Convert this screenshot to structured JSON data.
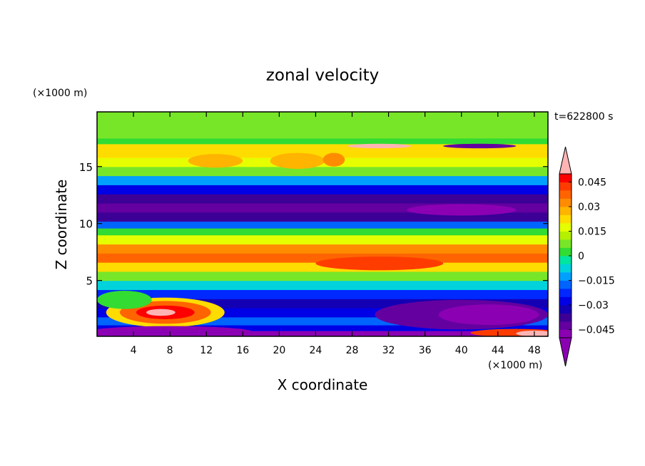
{
  "chart_data": {
    "type": "heatmap",
    "subtype": "filled-contour",
    "title": "zonal velocity",
    "time_label": "t=622800 s",
    "xlabel": "X coordinate",
    "ylabel": "Z coordinate",
    "x_unit": "(×1000 m)",
    "y_unit": "(×1000 m)",
    "xlim": [
      0,
      49.5
    ],
    "ylim": [
      0.1,
      19.8
    ],
    "x_ticks": [
      4,
      8,
      12,
      16,
      20,
      24,
      28,
      32,
      36,
      40,
      44,
      48
    ],
    "x_tick_labels": [
      "4",
      "8",
      "12",
      "16",
      "20",
      "24",
      "28",
      "32",
      "36",
      "40",
      "44",
      "48"
    ],
    "y_ticks": [
      5,
      10,
      15
    ],
    "y_tick_labels": [
      "5",
      "10",
      "15"
    ],
    "colorbar": {
      "levels": [
        -0.05,
        -0.045,
        -0.04,
        -0.035,
        -0.03,
        -0.025,
        -0.02,
        -0.015,
        -0.01,
        -0.005,
        0,
        0.005,
        0.01,
        0.015,
        0.02,
        0.025,
        0.03,
        0.035,
        0.04,
        0.045,
        0.05
      ],
      "tick_values": [
        0.045,
        0.03,
        0.015,
        0,
        -0.015,
        -0.03,
        -0.045
      ],
      "tick_labels": [
        "0.045",
        "0.03",
        "0.015",
        "0",
        "−0.015",
        "−0.03",
        "−0.045"
      ],
      "colors": [
        "#8c00b4",
        "#6400a0",
        "#3c0096",
        "#1400b4",
        "#0000e6",
        "#0028ff",
        "#0064ff",
        "#00a0ff",
        "#00d2dc",
        "#00e6a0",
        "#32dc32",
        "#78e628",
        "#b4f000",
        "#e6ff00",
        "#ffdc00",
        "#ffb400",
        "#ff8c00",
        "#ff6400",
        "#ff3c00",
        "#ff0000"
      ],
      "over_color": "#ffb4b4",
      "under_color": "#8c00b4"
    },
    "bands": [
      {
        "z": 0.1,
        "u": -0.05
      },
      {
        "z": 0.6,
        "u": -0.03
      },
      {
        "z": 1.1,
        "u": -0.02
      },
      {
        "z": 1.8,
        "u": -0.03
      },
      {
        "z": 2.6,
        "u": -0.035
      },
      {
        "z": 3.4,
        "u": -0.025
      },
      {
        "z": 4.2,
        "u": -0.01
      },
      {
        "z": 5.0,
        "u": 0.005
      },
      {
        "z": 5.8,
        "u": 0.02
      },
      {
        "z": 6.6,
        "u": 0.035
      },
      {
        "z": 7.4,
        "u": 0.03
      },
      {
        "z": 8.2,
        "u": 0.015
      },
      {
        "z": 9.0,
        "u": 0.0
      },
      {
        "z": 9.6,
        "u": -0.02
      },
      {
        "z": 10.2,
        "u": -0.04
      },
      {
        "z": 11.0,
        "u": -0.045
      },
      {
        "z": 11.8,
        "u": -0.04
      },
      {
        "z": 12.6,
        "u": -0.03
      },
      {
        "z": 13.4,
        "u": -0.015
      },
      {
        "z": 14.2,
        "u": 0.005
      },
      {
        "z": 15.0,
        "u": 0.015
      },
      {
        "z": 15.8,
        "u": 0.02
      },
      {
        "z": 16.5,
        "u": 0.02
      },
      {
        "z": 17.0,
        "u": 0.0
      },
      {
        "z": 17.5,
        "u": 0.005
      },
      {
        "z": 19.8,
        "u": 0.005
      }
    ],
    "features": [
      {
        "shape": "ellipse",
        "x": 7.5,
        "z": 2.2,
        "rx": 6.5,
        "rz": 1.3,
        "u": 0.02
      },
      {
        "shape": "ellipse",
        "x": 7.5,
        "z": 2.2,
        "rx": 5.0,
        "rz": 1.0,
        "u": 0.035
      },
      {
        "shape": "ellipse",
        "x": 7.5,
        "z": 2.2,
        "rx": 3.2,
        "rz": 0.6,
        "u": 0.045
      },
      {
        "shape": "ellipse",
        "x": 7.0,
        "z": 2.2,
        "rx": 1.6,
        "rz": 0.3,
        "u": 0.05
      },
      {
        "shape": "ellipse",
        "x": 40.0,
        "z": 2.0,
        "rx": 9.5,
        "rz": 1.3,
        "u": -0.045
      },
      {
        "shape": "ellipse",
        "x": 43.0,
        "z": 2.0,
        "rx": 5.5,
        "rz": 0.9,
        "u": -0.05
      },
      {
        "shape": "ellipse",
        "x": 31.0,
        "z": 6.5,
        "rx": 7.0,
        "rz": 0.6,
        "u": 0.04
      },
      {
        "shape": "ellipse",
        "x": 40.0,
        "z": 11.2,
        "rx": 6.0,
        "rz": 0.5,
        "u": -0.05
      },
      {
        "shape": "ellipse",
        "x": 42.0,
        "z": 16.8,
        "rx": 4.0,
        "rz": 0.2,
        "u": -0.045
      },
      {
        "shape": "ellipse",
        "x": 31.0,
        "z": 16.8,
        "rx": 3.5,
        "rz": 0.2,
        "u": 0.05
      },
      {
        "shape": "ellipse",
        "x": 22.0,
        "z": 15.5,
        "rx": 3.0,
        "rz": 0.7,
        "u": 0.025
      },
      {
        "shape": "ellipse",
        "x": 13.0,
        "z": 15.5,
        "rx": 3.0,
        "rz": 0.6,
        "u": 0.025
      },
      {
        "shape": "ellipse",
        "x": 26.0,
        "z": 15.6,
        "rx": 1.2,
        "rz": 0.6,
        "u": 0.03
      },
      {
        "shape": "ellipse",
        "x": 8.0,
        "z": 0.5,
        "rx": 9.0,
        "rz": 0.5,
        "u": -0.05
      },
      {
        "shape": "ellipse",
        "x": 46.0,
        "z": 0.4,
        "rx": 5.0,
        "rz": 0.35,
        "u": 0.04
      },
      {
        "shape": "ellipse",
        "x": 48.0,
        "z": 0.35,
        "rx": 2.0,
        "rz": 0.25,
        "u": 0.05
      },
      {
        "shape": "ellipse",
        "x": 3.0,
        "z": 3.3,
        "rx": 3.0,
        "rz": 0.8,
        "u": 0.0
      }
    ]
  }
}
